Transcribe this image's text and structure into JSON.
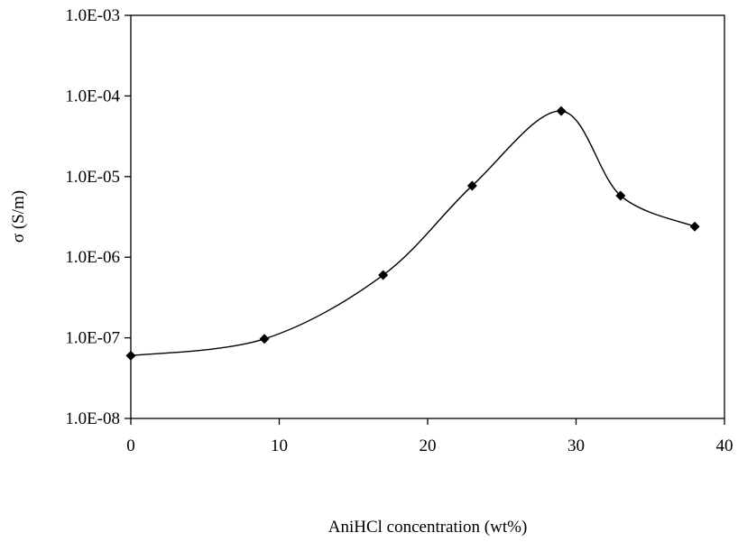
{
  "chart_data": {
    "type": "scatter",
    "title": "",
    "xlabel": "AniHCl concentration (wt%)",
    "ylabel": "σ (S/m)",
    "xlim": [
      0,
      40
    ],
    "ylim": [
      1e-08,
      0.001
    ],
    "yscale": "log",
    "grid": false,
    "legend": "none",
    "x_ticks": [
      "0",
      "10",
      "20",
      "30",
      "40"
    ],
    "x_tick_values": [
      0,
      10,
      20,
      30,
      40
    ],
    "y_ticks": [
      "1.0E-08",
      "1.0E-07",
      "1.0E-06",
      "1.0E-05",
      "1.0E-04",
      "1.0E-03"
    ],
    "y_tick_values": [
      1e-08,
      1e-07,
      1e-06,
      1e-05,
      0.0001,
      0.001
    ],
    "series": [
      {
        "marker": "diamond",
        "color": "#000000",
        "smooth_line": true,
        "x": [
          0,
          9,
          17,
          23,
          29,
          33,
          38
        ],
        "y": [
          6e-08,
          9.7e-08,
          6e-07,
          7.7e-06,
          6.5e-05,
          5.8e-06,
          2.4e-06
        ]
      }
    ]
  }
}
